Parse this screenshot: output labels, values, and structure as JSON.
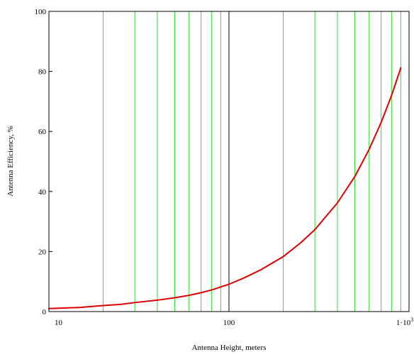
{
  "chart_data": {
    "type": "line",
    "xlabel": "Antenna Height, meters",
    "ylabel": "Antenna Efficiency, %",
    "x_scale": "log",
    "xlim": [
      10,
      1000
    ],
    "ylim": [
      0,
      100
    ],
    "grid": true,
    "x_tick_labels": [
      {
        "value": 10,
        "label": "10",
        "exp": ""
      },
      {
        "value": 100,
        "label": "100",
        "exp": ""
      },
      {
        "value": 1000,
        "label": "1·10",
        "exp": "3"
      }
    ],
    "y_ticks": [
      0,
      20,
      40,
      60,
      80,
      100
    ],
    "series": [
      {
        "color": "#e00000",
        "x": [
          10,
          15,
          20,
          25,
          30,
          40,
          50,
          60,
          70,
          80,
          90,
          100,
          120,
          150,
          200,
          250,
          300,
          400,
          500,
          600,
          700,
          800,
          900
        ],
        "y": [
          1.0,
          1.4,
          2.0,
          2.4,
          3.0,
          3.8,
          4.6,
          5.4,
          6.3,
          7.2,
          8.2,
          9.1,
          11.1,
          13.9,
          18.3,
          22.9,
          27.3,
          36.2,
          45.0,
          54.0,
          63.0,
          72.0,
          81.2
        ]
      }
    ],
    "colors": {
      "grid_minor": "#33dd33",
      "grid_major": "#000000",
      "frame": "#000000"
    }
  }
}
